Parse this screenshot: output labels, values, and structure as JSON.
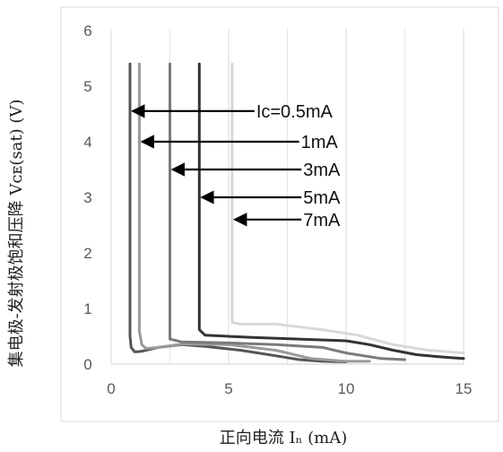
{
  "chart_data": {
    "type": "line",
    "title": "",
    "xlabel": "正向电流 Iₙ (mA)",
    "ylabel": "集电极-发射极饱和压降 Vᴄᴇ(sat) (V)",
    "xlim": [
      0,
      15
    ],
    "ylim": [
      0,
      6
    ],
    "x_ticks": [
      0,
      5,
      10,
      15
    ],
    "y_ticks": [
      0,
      1,
      2,
      3,
      4,
      5,
      6
    ],
    "grid": "vertical",
    "series": [
      {
        "name": "Iᴄ=0.5mA",
        "color": "#555555",
        "points": [
          [
            0.8,
            5.4
          ],
          [
            0.8,
            0.5
          ],
          [
            0.85,
            0.3
          ],
          [
            1.0,
            0.22
          ],
          [
            1.3,
            0.23
          ],
          [
            2.0,
            0.3
          ],
          [
            3.0,
            0.35
          ],
          [
            4.0,
            0.32
          ],
          [
            5.5,
            0.25
          ],
          [
            7.0,
            0.15
          ],
          [
            8.0,
            0.08
          ],
          [
            9.0,
            0.05
          ],
          [
            10.0,
            0.04
          ]
        ]
      },
      {
        "name": "1mA",
        "color": "#9a9a9a",
        "points": [
          [
            1.2,
            5.4
          ],
          [
            1.2,
            0.6
          ],
          [
            1.3,
            0.35
          ],
          [
            1.5,
            0.28
          ],
          [
            2.0,
            0.3
          ],
          [
            3.0,
            0.36
          ],
          [
            5.0,
            0.35
          ],
          [
            7.0,
            0.25
          ],
          [
            8.5,
            0.1
          ],
          [
            10.0,
            0.05
          ],
          [
            11.0,
            0.05
          ]
        ]
      },
      {
        "name": "3mA",
        "color": "#7a7a7a",
        "points": [
          [
            2.5,
            5.4
          ],
          [
            2.5,
            0.45
          ],
          [
            3.0,
            0.4
          ],
          [
            5.0,
            0.38
          ],
          [
            7.0,
            0.35
          ],
          [
            9.0,
            0.3
          ],
          [
            10.0,
            0.2
          ],
          [
            11.5,
            0.1
          ],
          [
            12.5,
            0.08
          ]
        ]
      },
      {
        "name": "5mA",
        "color": "#333333",
        "points": [
          [
            3.75,
            5.4
          ],
          [
            3.75,
            0.62
          ],
          [
            4.0,
            0.52
          ],
          [
            6.0,
            0.48
          ],
          [
            8.0,
            0.45
          ],
          [
            10.0,
            0.42
          ],
          [
            11.0,
            0.35
          ],
          [
            12.0,
            0.25
          ],
          [
            13.0,
            0.17
          ],
          [
            14.0,
            0.13
          ],
          [
            15.0,
            0.1
          ]
        ]
      },
      {
        "name": "7mA",
        "color": "#d8d8d8",
        "points": [
          [
            5.15,
            5.4
          ],
          [
            5.15,
            0.75
          ],
          [
            5.5,
            0.72
          ],
          [
            7.0,
            0.72
          ],
          [
            9.0,
            0.62
          ],
          [
            10.5,
            0.52
          ],
          [
            12.0,
            0.35
          ],
          [
            13.5,
            0.25
          ],
          [
            15.0,
            0.2
          ]
        ]
      }
    ],
    "annotations": [
      {
        "label": "Iᴄ=0.5mA",
        "y": 4.55,
        "x_from": 6.1,
        "x_to": 0.9
      },
      {
        "label": "1mA",
        "y": 4.0,
        "x_from": 8.0,
        "x_to": 1.3
      },
      {
        "label": "3mA",
        "y": 3.5,
        "x_from": 8.1,
        "x_to": 2.6
      },
      {
        "label": "5mA",
        "y": 3.0,
        "x_from": 8.1,
        "x_to": 3.85
      },
      {
        "label": "7mA",
        "y": 2.6,
        "x_from": 8.1,
        "x_to": 5.25
      }
    ]
  }
}
